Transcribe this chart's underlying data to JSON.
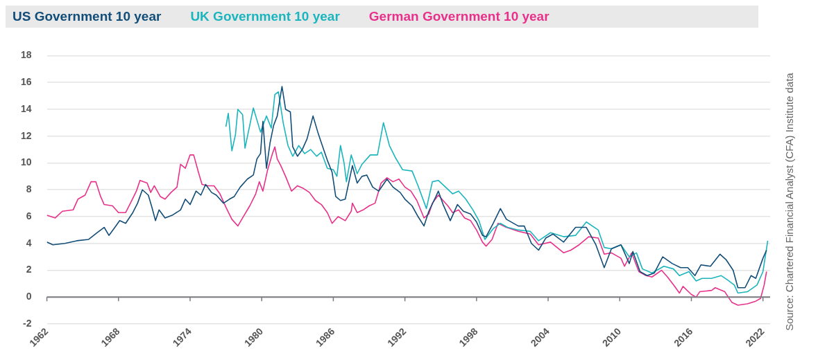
{
  "chart_data": {
    "type": "line",
    "annotations": [
      "Source: Chartered Financial Analyst (CFA) Institute data"
    ],
    "legend": "top left",
    "grid": "y",
    "marker": "none",
    "line_style": "solid",
    "xlim": [
      1962,
      2022.6
    ],
    "xticks": [
      1962,
      1968,
      1974,
      1980,
      1986,
      1992,
      1998,
      2004,
      2010,
      2016,
      2022
    ],
    "ylim": [
      -2,
      18
    ],
    "yticks": [
      -2,
      0,
      2,
      4,
      6,
      8,
      10,
      12,
      14,
      16,
      18
    ],
    "series": [
      {
        "name": "US Government 10 year",
        "color": "#124d78",
        "x": [
          1962,
          1962.5,
          1963.5,
          1964.5,
          1965.5,
          1966.2,
          1966.8,
          1967.2,
          1967.7,
          1968.1,
          1968.6,
          1969.2,
          1969.6,
          1970,
          1970.5,
          1970.8,
          1971.1,
          1971.4,
          1971.9,
          1972.5,
          1973.2,
          1973.6,
          1974,
          1974.5,
          1974.9,
          1975.3,
          1975.8,
          1976.2,
          1976.8,
          1977.3,
          1977.7,
          1978.2,
          1978.8,
          1979.3,
          1979.6,
          1979.9,
          1980.1,
          1980.4,
          1980.7,
          1981,
          1981.3,
          1981.7,
          1982,
          1982.4,
          1982.6,
          1983,
          1983.4,
          1983.8,
          1984.3,
          1984.7,
          1985,
          1985.5,
          1985.9,
          1986.2,
          1986.6,
          1987,
          1987.6,
          1988,
          1988.4,
          1988.8,
          1989.3,
          1989.8,
          1990.5,
          1991,
          1991.6,
          1992,
          1992.6,
          1993.1,
          1993.6,
          1994,
          1994.6,
          1994.8,
          1995.2,
          1995.8,
          1996.4,
          1996.9,
          1997.5,
          1998,
          1998.5,
          1998.8,
          1999.4,
          2000,
          2000.5,
          2001.5,
          2002,
          2002.6,
          2003.2,
          2003.8,
          2004.4,
          2005.3,
          2006.3,
          2007.2,
          2008,
          2008.7,
          2009.3,
          2010.1,
          2010.8,
          2011.1,
          2011.7,
          2012.3,
          2012.9,
          2013.6,
          2014.4,
          2015.1,
          2015.7,
          2016.3,
          2016.8,
          2017.6,
          2018.4,
          2018.9,
          2019.5,
          2019.9,
          2020.5,
          2021,
          2021.4,
          2022,
          2022.3
        ],
        "values": [
          4.1,
          3.9,
          4.0,
          4.2,
          4.3,
          4.8,
          5.2,
          4.6,
          5.2,
          5.7,
          5.5,
          6.3,
          7.0,
          8.0,
          7.6,
          6.7,
          5.7,
          6.5,
          5.9,
          6.1,
          6.5,
          7.3,
          6.9,
          7.9,
          7.6,
          8.4,
          7.8,
          7.6,
          7.0,
          7.3,
          7.5,
          8.2,
          8.8,
          9.1,
          10.3,
          10.7,
          13.1,
          9.6,
          11.5,
          12.8,
          13.5,
          15.7,
          14.0,
          13.8,
          11.2,
          10.5,
          11.0,
          11.8,
          13.5,
          12.3,
          11.5,
          10.2,
          9.3,
          7.5,
          7.2,
          7.3,
          9.8,
          8.5,
          9.0,
          9.1,
          8.2,
          7.9,
          8.8,
          8.2,
          7.8,
          7.3,
          6.8,
          6.0,
          5.3,
          6.4,
          7.5,
          7.9,
          6.9,
          5.7,
          6.9,
          6.4,
          6.2,
          5.6,
          4.6,
          4.5,
          5.5,
          6.6,
          5.8,
          5.3,
          5.3,
          4.0,
          3.5,
          4.4,
          4.7,
          4.1,
          5.2,
          5.2,
          3.9,
          2.2,
          3.6,
          3.9,
          2.5,
          3.4,
          1.9,
          1.6,
          1.8,
          3.0,
          2.5,
          2.2,
          2.2,
          1.6,
          2.4,
          2.3,
          3.2,
          2.8,
          2.0,
          0.7,
          0.7,
          1.6,
          1.4,
          2.9,
          3.5
        ]
      },
      {
        "name": "UK Government 10 year",
        "color": "#1bb5bd",
        "x": [
          1977,
          1977.2,
          1977.5,
          1977.8,
          1978,
          1978.4,
          1978.6,
          1979.3,
          1979.9,
          1980.4,
          1980.8,
          1981.1,
          1981.4,
          1981.8,
          1982.2,
          1982.6,
          1983.1,
          1983.6,
          1984.1,
          1984.6,
          1985,
          1985.5,
          1986,
          1986.3,
          1986.6,
          1986.9,
          1987.1,
          1987.5,
          1988,
          1988.4,
          1989.1,
          1989.7,
          1990.2,
          1990.7,
          1991.2,
          1991.8,
          1992.6,
          1993.1,
          1993.8,
          1994.3,
          1994.8,
          1995.4,
          1996,
          1996.5,
          1997.1,
          1997.7,
          1998.2,
          1998.7,
          1999.4,
          2000,
          2000.6,
          2001.5,
          2002.5,
          2003.2,
          2004.2,
          2005.3,
          2006.3,
          2007.2,
          2008.2,
          2008.7,
          2009.3,
          2010.1,
          2010.8,
          2011.4,
          2011.9,
          2012.7,
          2013.7,
          2014.5,
          2015,
          2015.8,
          2016.4,
          2016.9,
          2017.7,
          2018.5,
          2019,
          2019.6,
          2019.9,
          2020.7,
          2021.5,
          2022,
          2022.4
        ],
        "values": [
          12.7,
          13.7,
          10.9,
          12.1,
          14.0,
          13.6,
          11.1,
          14.1,
          12.3,
          13.5,
          12.6,
          15.1,
          15.3,
          13.0,
          11.3,
          10.5,
          11.3,
          10.7,
          11.0,
          10.5,
          10.8,
          9.6,
          9.5,
          9.0,
          11.3,
          10.0,
          8.6,
          10.6,
          9.2,
          9.9,
          10.6,
          10.6,
          13.0,
          11.3,
          10.4,
          9.5,
          9.4,
          8.3,
          6.6,
          8.6,
          8.7,
          8.2,
          7.7,
          7.9,
          7.3,
          6.5,
          5.7,
          4.3,
          5.1,
          5.5,
          5.2,
          5.0,
          4.9,
          4.2,
          4.8,
          4.5,
          4.6,
          5.6,
          5.0,
          3.7,
          3.6,
          3.9,
          3.0,
          3.3,
          2.1,
          1.8,
          2.3,
          2.1,
          1.6,
          1.9,
          1.2,
          1.4,
          1.4,
          1.6,
          1.3,
          0.9,
          0.3,
          0.4,
          0.9,
          1.9,
          4.2
        ]
      },
      {
        "name": "German Government 10 year",
        "color": "#e8318a",
        "x": [
          1962,
          1962.7,
          1963.3,
          1964.2,
          1964.6,
          1965.2,
          1965.7,
          1966.1,
          1966.5,
          1966.8,
          1967.5,
          1968,
          1968.6,
          1969,
          1969.5,
          1969.8,
          1970.4,
          1970.7,
          1971,
          1971.5,
          1971.9,
          1972.4,
          1972.9,
          1973.2,
          1973.6,
          1974,
          1974.3,
          1974.7,
          1975,
          1975.5,
          1976,
          1976.5,
          1977,
          1977.5,
          1978,
          1978.4,
          1979,
          1979.5,
          1979.8,
          1980.1,
          1980.5,
          1980.9,
          1981.1,
          1981.3,
          1981.6,
          1982,
          1982.5,
          1983,
          1983.5,
          1984,
          1984.5,
          1985,
          1985.5,
          1985.9,
          1986.4,
          1987,
          1987.5,
          1987.6,
          1988,
          1988.5,
          1989,
          1989.5,
          1990,
          1990.5,
          1991,
          1991.5,
          1992,
          1992.5,
          1993,
          1993.6,
          1994,
          1994.3,
          1994.8,
          1995.2,
          1995.6,
          1996,
          1996.5,
          1997,
          1997.5,
          1998,
          1998.5,
          1998.8,
          1999.3,
          1999.8,
          2000.5,
          2001.5,
          2002.5,
          2003.2,
          2004.2,
          2005.3,
          2005.9,
          2006.6,
          2007.4,
          2008.2,
          2008.7,
          2009.3,
          2010.1,
          2010.4,
          2011,
          2011.6,
          2012.2,
          2012.7,
          2013.5,
          2014,
          2014.6,
          2015,
          2015.3,
          2016,
          2016.4,
          2016.7,
          2017.7,
          2018,
          2018.8,
          2019.4,
          2019.9,
          2020.7,
          2021.4,
          2021.8,
          2022.1,
          2022.3
        ],
        "values": [
          6.1,
          5.9,
          6.4,
          6.5,
          7.3,
          7.6,
          8.6,
          8.6,
          7.5,
          6.9,
          6.8,
          6.3,
          6.3,
          7.0,
          7.9,
          8.7,
          8.5,
          7.8,
          8.3,
          7.5,
          7.3,
          7.8,
          8.2,
          9.9,
          9.6,
          10.6,
          10.6,
          9.3,
          8.4,
          8.3,
          8.3,
          7.7,
          6.7,
          5.8,
          5.3,
          5.9,
          6.8,
          7.7,
          8.6,
          7.9,
          9.5,
          10.7,
          11.2,
          10.3,
          9.8,
          9.0,
          7.9,
          8.3,
          8.1,
          7.8,
          7.2,
          6.9,
          6.3,
          5.5,
          6.0,
          5.7,
          6.4,
          7.0,
          6.3,
          6.5,
          6.8,
          7.0,
          8.5,
          8.9,
          8.6,
          8.8,
          8.2,
          7.9,
          7.2,
          5.9,
          6.2,
          7.0,
          7.6,
          7.2,
          6.8,
          6.3,
          6.5,
          5.9,
          5.7,
          5.0,
          4.1,
          3.8,
          4.3,
          5.5,
          5.2,
          4.9,
          4.7,
          3.9,
          4.1,
          3.3,
          3.5,
          3.9,
          4.5,
          4.4,
          3.2,
          3.3,
          2.9,
          2.3,
          3.3,
          1.9,
          1.6,
          1.5,
          2.0,
          1.5,
          0.8,
          0.3,
          0.8,
          0.2,
          0.0,
          0.4,
          0.5,
          0.7,
          0.4,
          -0.4,
          -0.6,
          -0.5,
          -0.3,
          -0.1,
          0.9,
          1.9
        ]
      }
    ]
  }
}
